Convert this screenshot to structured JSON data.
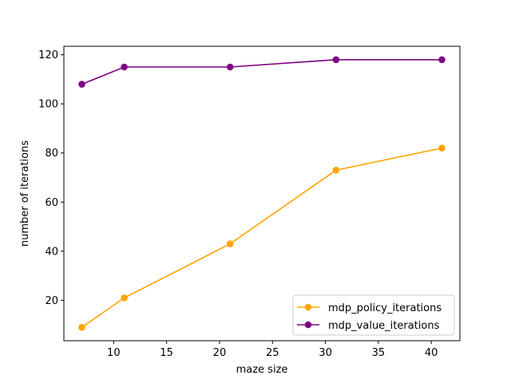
{
  "chart_data": {
    "type": "line",
    "title": "",
    "xlabel": "maze size",
    "ylabel": "number of iterations",
    "xlim": [
      5.3,
      42.7
    ],
    "ylim": [
      3.55,
      123.45
    ],
    "xticks": [
      10,
      15,
      20,
      25,
      30,
      35,
      40
    ],
    "yticks": [
      20,
      40,
      60,
      80,
      100,
      120
    ],
    "x": [
      7,
      11,
      21,
      31,
      41
    ],
    "series": [
      {
        "name": "mdp_policy_iterations",
        "color": "#ffa500",
        "marker": "circle",
        "values": [
          9,
          21,
          43,
          73,
          82
        ]
      },
      {
        "name": "mdp_value_iterations",
        "color": "#800080",
        "marker": "circle",
        "values": [
          108,
          115,
          115,
          118,
          118
        ]
      }
    ],
    "grid": false,
    "legend": "lower-right"
  }
}
